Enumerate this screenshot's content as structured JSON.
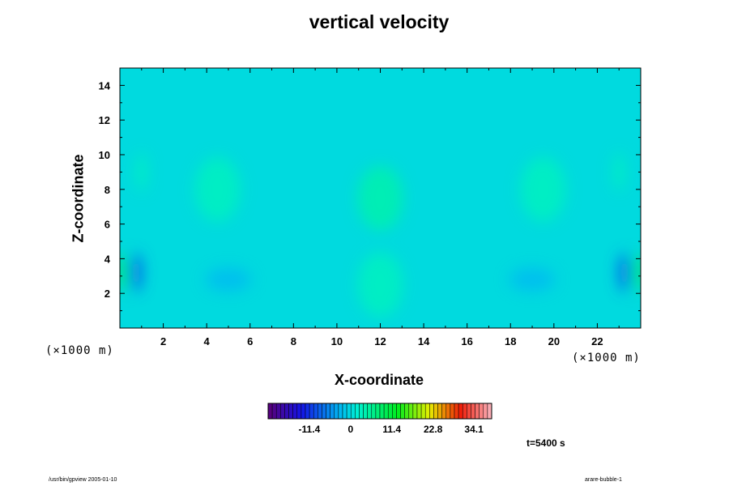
{
  "chart_data": {
    "type": "heatmap",
    "title": "vertical velocity",
    "xlabel": "X-coordinate",
    "ylabel": "Z-coordinate",
    "x_unit": "(×1000 m)",
    "z_unit": "(×1000 m)",
    "xlim": [
      0,
      24
    ],
    "ylim": [
      0,
      15
    ],
    "x_ticks": [
      2,
      4,
      6,
      8,
      10,
      12,
      14,
      16,
      18,
      20,
      22
    ],
    "y_ticks": [
      2,
      4,
      6,
      8,
      10,
      12,
      14
    ],
    "colorbar": {
      "min": -22.8,
      "max": 39.0,
      "tick_values": [
        -11.4,
        0,
        11.4,
        22.8,
        34.1
      ],
      "tick_labels": [
        "-11.4",
        "0",
        "11.4",
        "22.8",
        "34.1"
      ]
    },
    "background_value": 0,
    "features": [
      {
        "x": 5.0,
        "z": 2.8,
        "value": -2.5
      },
      {
        "x": 19.0,
        "z": 2.8,
        "value": -2.5
      },
      {
        "x": 0.75,
        "z": 3.2,
        "value": -9.0
      },
      {
        "x": 23.25,
        "z": 3.2,
        "value": -9.0
      },
      {
        "x": 0.1,
        "z": 3.2,
        "value": 10.0
      },
      {
        "x": 23.9,
        "z": 3.2,
        "value": 10.0
      },
      {
        "x": 12.0,
        "z": 7.5,
        "value": 4.0
      },
      {
        "x": 12.0,
        "z": 2.5,
        "value": 3.0
      },
      {
        "x": 4.5,
        "z": 8.0,
        "value": 3.0
      },
      {
        "x": 19.5,
        "z": 8.0,
        "value": 3.0
      },
      {
        "x": 1.0,
        "z": 9.0,
        "value": 3.0
      },
      {
        "x": 23.0,
        "z": 9.0,
        "value": 3.0
      }
    ]
  },
  "annotations": {
    "time": "t=5400 s",
    "footer_left": "/usr/bin/gpview 2005-01-10",
    "footer_right": "arare-bubble-1"
  }
}
